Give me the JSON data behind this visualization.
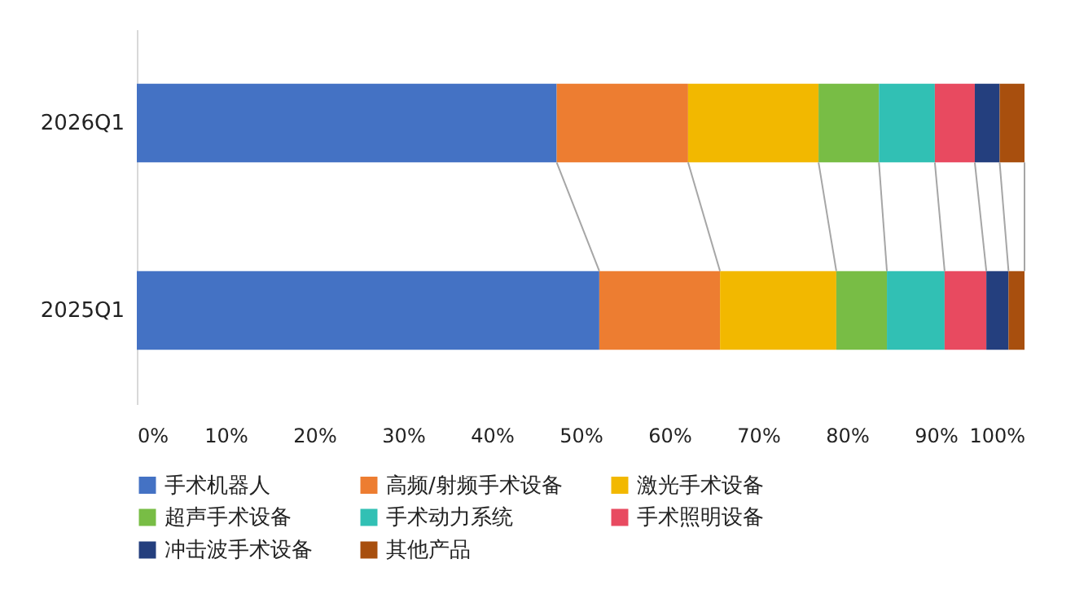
{
  "chart_data": {
    "type": "bar",
    "orientation": "horizontal",
    "stacked": true,
    "categories": [
      "2026Q1",
      "2025Q1"
    ],
    "series": [
      {
        "name": "手术机器人",
        "color": "#4472c4",
        "values": [
          47.3,
          52.1
        ]
      },
      {
        "name": "高频/射频手术设备",
        "color": "#ed7d31",
        "values": [
          14.8,
          13.6
        ]
      },
      {
        "name": "激光手术设备",
        "color": "#f2b800",
        "values": [
          14.7,
          13.1
        ]
      },
      {
        "name": "超声手术设备",
        "color": "#78bd45",
        "values": [
          6.8,
          5.7
        ]
      },
      {
        "name": "手术动力系统",
        "color": "#31c0b4",
        "values": [
          6.3,
          6.5
        ]
      },
      {
        "name": "手术照明设备",
        "color": "#e84a60",
        "values": [
          4.5,
          4.7
        ]
      },
      {
        "name": "冲击波手术设备",
        "color": "#243f7e",
        "values": [
          2.8,
          2.5
        ]
      },
      {
        "name": "其他产品",
        "color": "#a84f0e",
        "values": [
          2.8,
          1.8
        ]
      }
    ],
    "xlim": [
      0,
      100
    ],
    "xticks": [
      {
        "value": 0,
        "label": "0%"
      },
      {
        "value": 10,
        "label": "10%"
      },
      {
        "value": 20,
        "label": "20%"
      },
      {
        "value": 30,
        "label": "30%"
      },
      {
        "value": 40,
        "label": "40%"
      },
      {
        "value": 50,
        "label": "50%"
      },
      {
        "value": 60,
        "label": "60%"
      },
      {
        "value": 70,
        "label": "70%"
      },
      {
        "value": 80,
        "label": "80%"
      },
      {
        "value": 90,
        "label": "90%"
      },
      {
        "value": 100,
        "label": "100%"
      }
    ],
    "grid": false,
    "legend": "bottom"
  }
}
